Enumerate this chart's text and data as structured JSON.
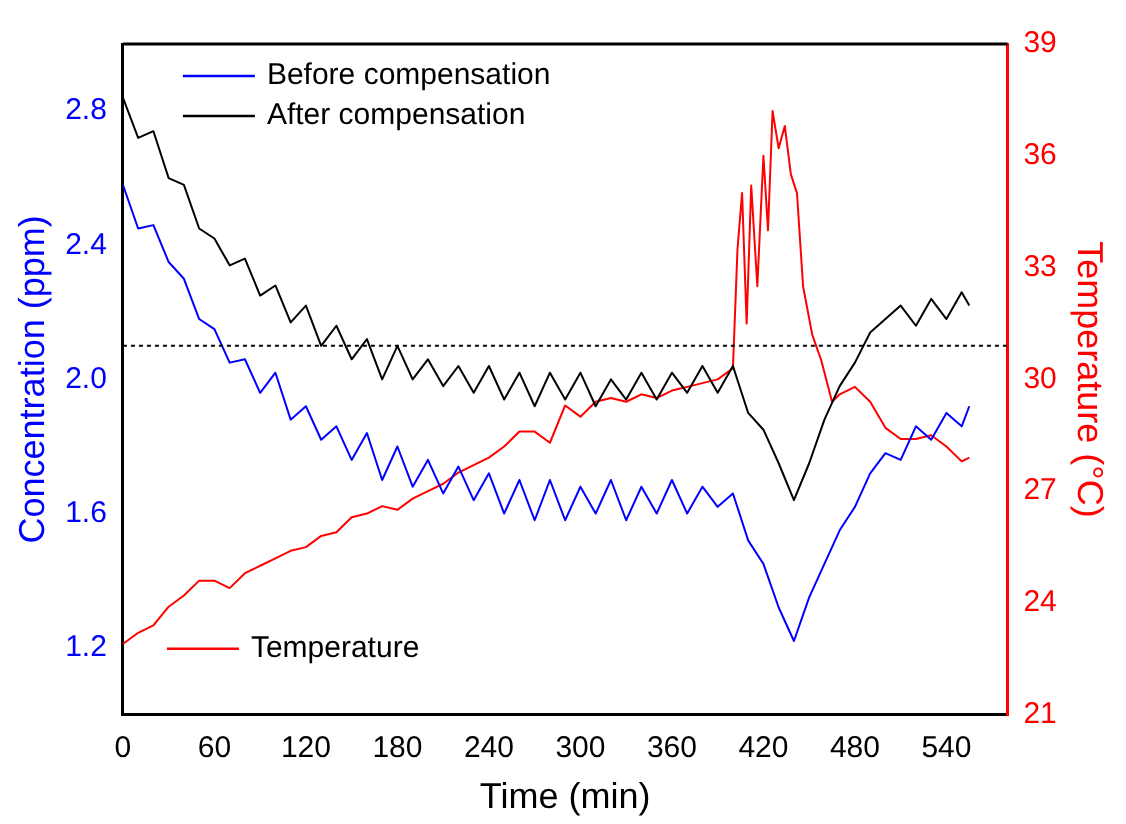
{
  "chart_data": {
    "type": "line",
    "xlabel": "Time (min)",
    "ylabel": "Concentration (ppm)",
    "y2label": "Temperature (°C)",
    "x": [
      0,
      10,
      20,
      30,
      40,
      50,
      60,
      70,
      80,
      90,
      100,
      110,
      120,
      130,
      140,
      150,
      160,
      170,
      180,
      190,
      200,
      210,
      220,
      230,
      240,
      250,
      260,
      270,
      280,
      290,
      300,
      310,
      320,
      330,
      340,
      350,
      360,
      370,
      380,
      390,
      400,
      410,
      420,
      430,
      440,
      450,
      460,
      470,
      480,
      490,
      500,
      510,
      520,
      530,
      540,
      550,
      555
    ],
    "xlim": [
      0,
      580
    ],
    "xticks": [
      0,
      60,
      120,
      180,
      240,
      300,
      360,
      420,
      480,
      540
    ],
    "ylim": [
      1.0,
      3.0
    ],
    "yticks": [
      {
        "value": 1.2,
        "label": "1.2"
      },
      {
        "value": 1.6,
        "label": "1.6"
      },
      {
        "value": 2.0,
        "label": "2.0"
      },
      {
        "value": 2.4,
        "label": "2.4"
      },
      {
        "value": 2.8,
        "label": "2.8"
      }
    ],
    "y2lim": [
      21,
      39
    ],
    "y2ticks": [
      21,
      24,
      27,
      30,
      33,
      36,
      39
    ],
    "grid": false,
    "legend": "top left",
    "marker": "none",
    "line_style": "solid",
    "ref_lines": [
      {
        "axis": "y",
        "value": 2.1,
        "label": null,
        "color": "#000000",
        "line_style": "dotted"
      }
    ],
    "series": [
      {
        "name": "Before compensation",
        "color": "#0000ff",
        "values": [
          2.58,
          2.45,
          2.46,
          2.35,
          2.3,
          2.18,
          2.15,
          2.05,
          2.06,
          1.96,
          2.02,
          1.88,
          1.92,
          1.82,
          1.86,
          1.76,
          1.84,
          1.7,
          1.8,
          1.68,
          1.76,
          1.66,
          1.74,
          1.64,
          1.72,
          1.6,
          1.7,
          1.58,
          1.7,
          1.58,
          1.68,
          1.6,
          1.7,
          1.58,
          1.68,
          1.6,
          1.7,
          1.6,
          1.68,
          1.62,
          1.66,
          1.52,
          1.45,
          1.32,
          1.22,
          1.35,
          1.45,
          1.55,
          1.62,
          1.72,
          1.78,
          1.76,
          1.86,
          1.82,
          1.9,
          1.86,
          1.92
        ]
      },
      {
        "name": "After compensation",
        "color": "#000000",
        "values": [
          2.84,
          2.72,
          2.74,
          2.6,
          2.58,
          2.45,
          2.42,
          2.34,
          2.36,
          2.25,
          2.28,
          2.17,
          2.22,
          2.1,
          2.16,
          2.06,
          2.12,
          2.0,
          2.1,
          2.0,
          2.06,
          1.98,
          2.04,
          1.96,
          2.04,
          1.94,
          2.02,
          1.92,
          2.02,
          1.94,
          2.02,
          1.92,
          2.0,
          1.94,
          2.02,
          1.94,
          2.02,
          1.96,
          2.04,
          1.96,
          2.04,
          1.9,
          1.85,
          1.75,
          1.64,
          1.75,
          1.88,
          1.98,
          2.05,
          2.14,
          2.18,
          2.22,
          2.16,
          2.24,
          2.18,
          2.26,
          2.22
        ]
      },
      {
        "name": "Temperature",
        "color": "#ff0000",
        "axis": "y2",
        "x": [
          0,
          10,
          20,
          30,
          40,
          50,
          60,
          70,
          80,
          90,
          100,
          110,
          120,
          130,
          140,
          150,
          160,
          170,
          180,
          190,
          200,
          210,
          220,
          230,
          240,
          250,
          260,
          270,
          280,
          290,
          300,
          310,
          320,
          330,
          340,
          350,
          360,
          370,
          380,
          390,
          400,
          403,
          406,
          409,
          412,
          416,
          420,
          423,
          426,
          430,
          434,
          438,
          442,
          446,
          452,
          458,
          465,
          470,
          480,
          490,
          500,
          510,
          520,
          530,
          540,
          550,
          555
        ],
        "values": [
          22.9,
          23.2,
          23.4,
          23.9,
          24.2,
          24.6,
          24.6,
          24.4,
          24.8,
          25.0,
          25.2,
          25.4,
          25.5,
          25.8,
          25.9,
          26.3,
          26.4,
          26.6,
          26.5,
          26.8,
          27.0,
          27.2,
          27.5,
          27.7,
          27.9,
          28.2,
          28.6,
          28.6,
          28.3,
          29.3,
          29.0,
          29.4,
          29.5,
          29.4,
          29.6,
          29.5,
          29.7,
          29.8,
          29.9,
          30.0,
          30.3,
          33.5,
          35.0,
          31.5,
          35.2,
          32.5,
          36.0,
          34.0,
          37.2,
          36.2,
          36.8,
          35.5,
          35.0,
          32.5,
          31.2,
          30.5,
          29.4,
          29.6,
          29.8,
          29.4,
          28.7,
          28.4,
          28.4,
          28.5,
          28.2,
          27.8,
          27.9
        ]
      }
    ]
  }
}
